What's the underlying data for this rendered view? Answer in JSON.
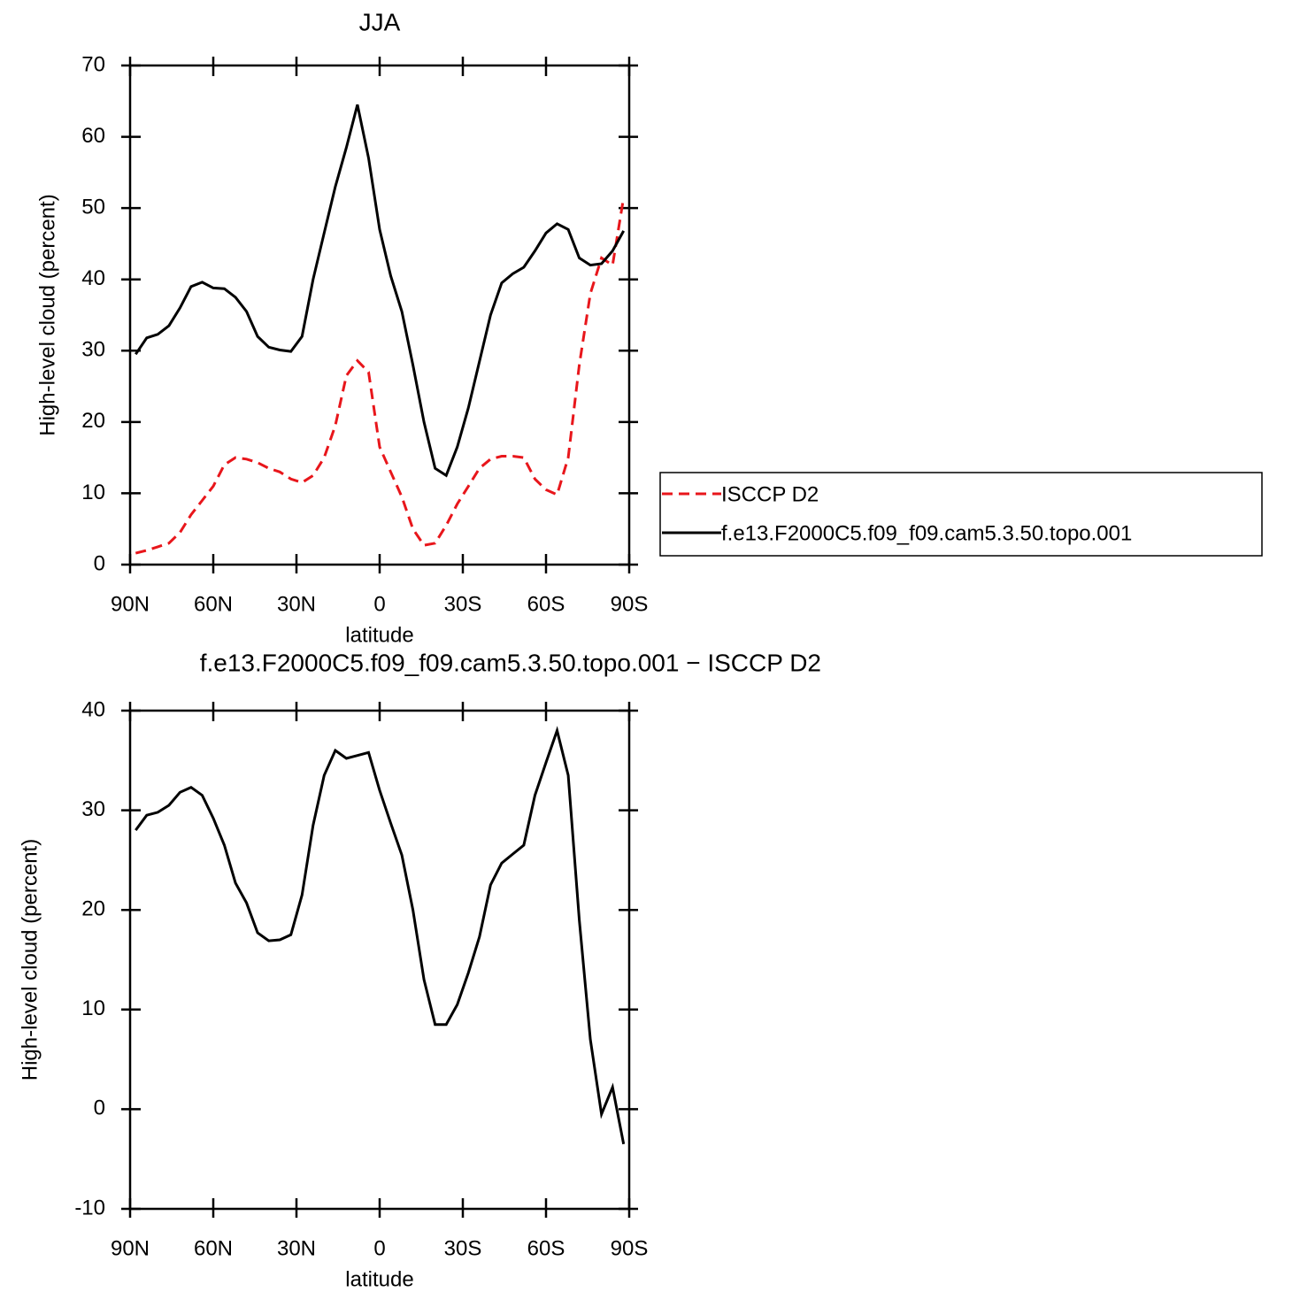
{
  "chart_data": [
    {
      "type": "line",
      "title": "JJA",
      "xlabel": "latitude",
      "ylabel": "High-level cloud (percent)",
      "x": [
        88,
        84,
        80,
        76,
        72,
        68,
        64,
        60,
        56,
        52,
        48,
        44,
        40,
        36,
        32,
        28,
        24,
        20,
        16,
        12,
        8,
        4,
        0,
        -4,
        -8,
        -12,
        -16,
        -20,
        -24,
        -28,
        -32,
        -36,
        -40,
        -44,
        -48,
        -52,
        -56,
        -60,
        -64,
        -68,
        -72,
        -76,
        -80,
        -84,
        -88
      ],
      "series": [
        {
          "name": "ISCCP D2",
          "color": "#e8161b",
          "line_style": "dashed",
          "values": [
            1.6,
            2,
            2.5,
            3,
            4.5,
            7,
            9,
            11,
            14,
            15,
            14.8,
            14.3,
            13.5,
            13,
            12,
            11.5,
            12.5,
            15,
            19.5,
            26.5,
            28.6,
            27,
            16.5,
            13,
            9.5,
            5,
            2.7,
            3,
            5.5,
            8.5,
            11,
            13.5,
            14.8,
            15.2,
            15.2,
            15,
            12,
            10.5,
            9.8,
            15,
            28,
            38,
            43,
            42,
            51.5
          ]
        },
        {
          "name": "f.e13.F2000C5.f09_f09.cam5.3.50.topo.001",
          "color": "#000000",
          "line_style": "solid",
          "values": [
            29.5,
            31.8,
            32.3,
            33.5,
            36,
            39,
            39.6,
            38.8,
            38.7,
            37.5,
            35.5,
            32,
            30.5,
            30.1,
            29.9,
            32,
            40,
            46.5,
            53,
            58.5,
            64.5,
            57,
            47,
            40.5,
            35.5,
            28,
            20,
            13.5,
            12.5,
            16.5,
            22,
            28.5,
            35,
            39.5,
            40.8,
            41.7,
            44,
            46.5,
            47.8,
            47,
            43,
            42,
            42.2,
            44,
            46.8
          ]
        }
      ],
      "xlim": [
        90,
        -90
      ],
      "xticks": [
        {
          "value": 90,
          "label": "90N"
        },
        {
          "value": 60,
          "label": "60N"
        },
        {
          "value": 30,
          "label": "30N"
        },
        0,
        {
          "value": -30,
          "label": "30S"
        },
        {
          "value": -60,
          "label": "60S"
        },
        {
          "value": -90,
          "label": "90S"
        }
      ],
      "ylim": [
        0,
        70
      ],
      "yticks": [
        0,
        10,
        20,
        30,
        40,
        50,
        60,
        70
      ],
      "legend": "right"
    },
    {
      "type": "line",
      "title": "f.e13.F2000C5.f09_f09.cam5.3.50.topo.001 − ISCCP D2",
      "xlabel": "latitude",
      "ylabel": "High-level cloud (percent)",
      "x": [
        88,
        84,
        80,
        76,
        72,
        68,
        64,
        60,
        56,
        52,
        48,
        44,
        40,
        36,
        32,
        28,
        24,
        20,
        16,
        12,
        8,
        4,
        0,
        -4,
        -8,
        -12,
        -16,
        -20,
        -24,
        -28,
        -32,
        -36,
        -40,
        -44,
        -48,
        -52,
        -56,
        -60,
        -64,
        -68,
        -72,
        -76,
        -80,
        -84,
        -88
      ],
      "series": [
        {
          "color": "#000000",
          "line_style": "solid",
          "values": [
            28,
            29.5,
            29.8,
            30.5,
            31.8,
            32.3,
            31.5,
            29.2,
            26.5,
            22.7,
            20.7,
            17.7,
            16.9,
            17,
            17.5,
            21.5,
            28.5,
            33.5,
            36,
            35.2,
            35.5,
            35.8,
            32,
            28.7,
            25.5,
            20,
            13,
            8.5,
            8.5,
            10.5,
            13.7,
            17.3,
            22.5,
            24.7,
            25.6,
            26.5,
            31.5,
            34.8,
            38,
            33.5,
            19,
            7,
            -0.5,
            2.2,
            -3.5
          ]
        }
      ],
      "xlim": [
        90,
        -90
      ],
      "xticks": [
        {
          "value": 90,
          "label": "90N"
        },
        {
          "value": 60,
          "label": "60N"
        },
        {
          "value": 30,
          "label": "30N"
        },
        0,
        {
          "value": -30,
          "label": "30S"
        },
        {
          "value": -60,
          "label": "60S"
        },
        {
          "value": -90,
          "label": "90S"
        }
      ],
      "ylim": [
        -10,
        40
      ],
      "yticks": [
        -10,
        0,
        10,
        20,
        30,
        40
      ]
    }
  ]
}
